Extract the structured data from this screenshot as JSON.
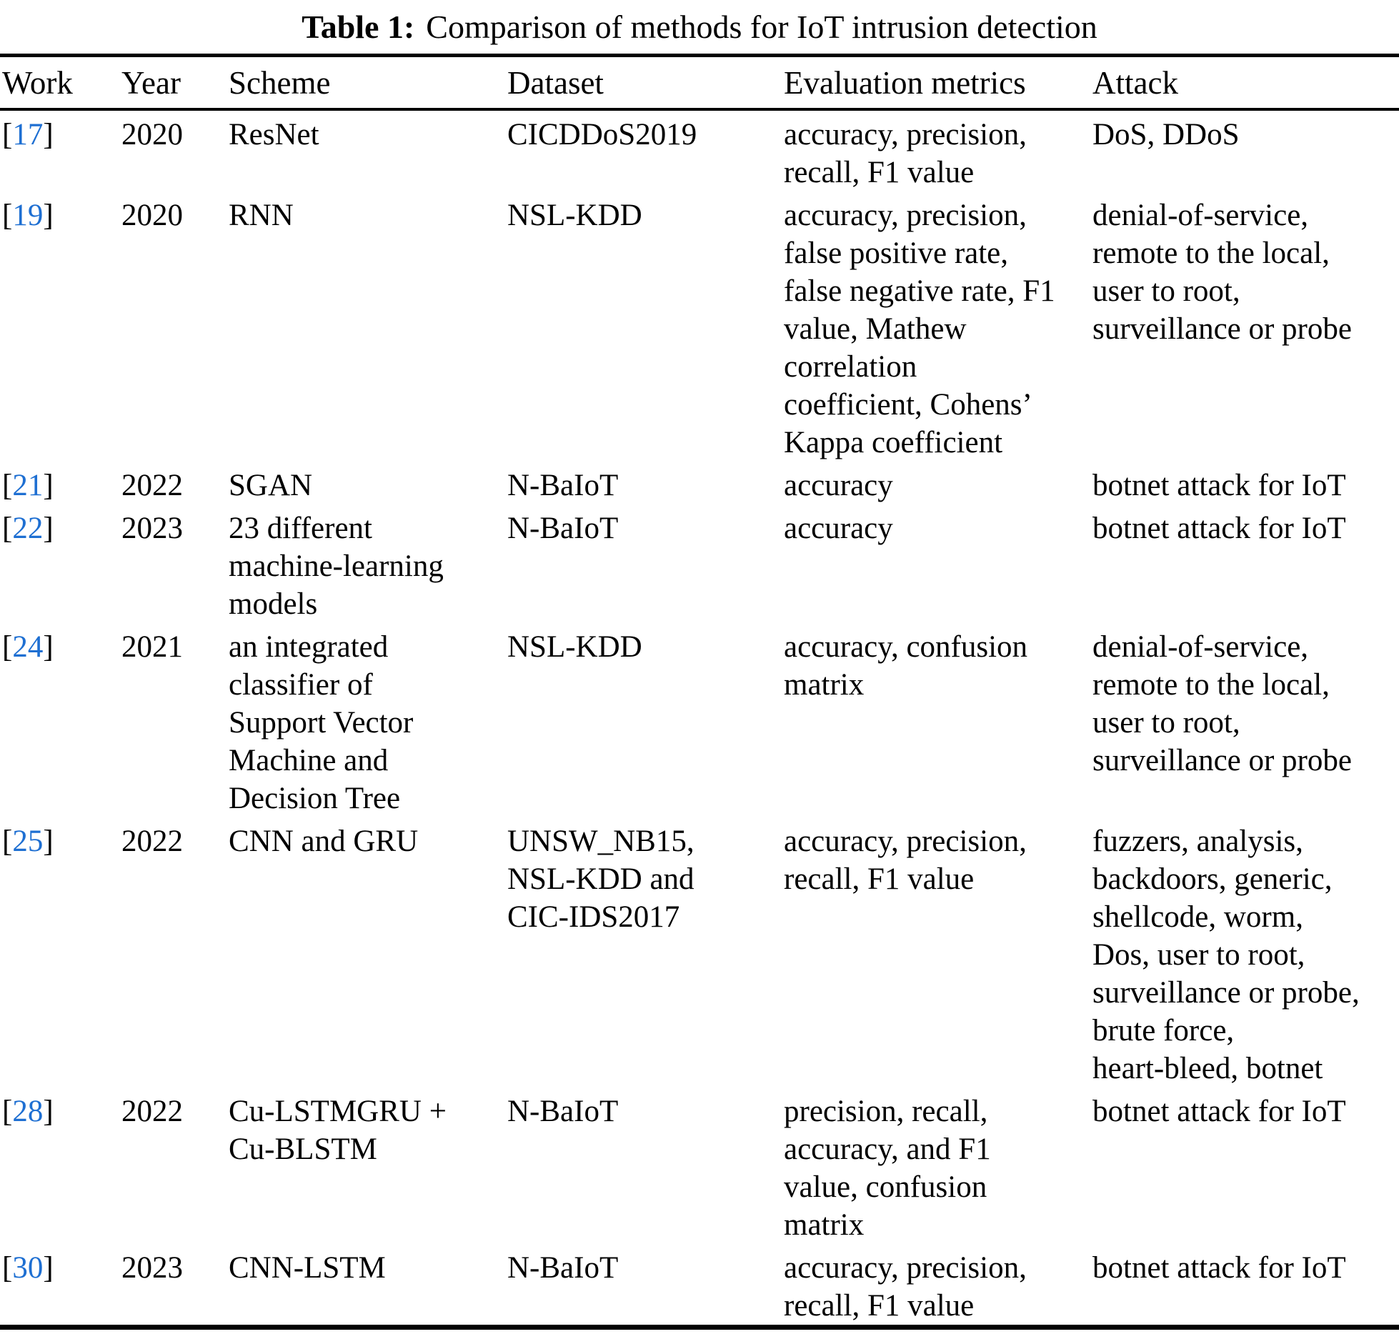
{
  "caption": {
    "label": "Table 1:",
    "text": "Comparison of methods for IoT intrusion detection"
  },
  "colors": {
    "citation_blue": "#1e6fd2",
    "text": "#000000",
    "background": "#ffffff"
  },
  "table": {
    "citation_brackets": [
      "[",
      "]"
    ],
    "headers": [
      "Work",
      "Year",
      "Scheme",
      "Dataset",
      "Evaluation metrics",
      "Attack"
    ],
    "rows": [
      {
        "work": "17",
        "year": "2020",
        "scheme": "ResNet",
        "dataset": "CICDDoS2019",
        "metrics": "accuracy, precision,\nrecall, F1 value",
        "attack": "DoS, DDoS"
      },
      {
        "work": "19",
        "year": "2020",
        "scheme": "RNN",
        "dataset": "NSL-KDD",
        "metrics": "accuracy, precision,\nfalse positive rate,\nfalse negative rate, F1\nvalue, Mathew\ncorrelation\ncoefficient, Cohens’\nKappa coefficient",
        "attack": "denial-of-service,\nremote to the local,\nuser to root,\nsurveillance or probe"
      },
      {
        "work": "21",
        "year": "2022",
        "scheme": "SGAN",
        "dataset": "N-BaIoT",
        "metrics": "accuracy",
        "attack": "botnet attack for IoT"
      },
      {
        "work": "22",
        "year": "2023",
        "scheme": "23 different\nmachine-learning\nmodels",
        "dataset": "N-BaIoT",
        "metrics": "accuracy",
        "attack": "botnet attack for IoT"
      },
      {
        "work": "24",
        "year": "2021",
        "scheme": "an integrated\nclassifier of\nSupport Vector\nMachine and\nDecision Tree",
        "dataset": "NSL-KDD",
        "metrics": "accuracy, confusion\nmatrix",
        "attack": "denial-of-service,\nremote to the local,\nuser to root,\nsurveillance or probe"
      },
      {
        "work": "25",
        "year": "2022",
        "scheme": "CNN and GRU",
        "dataset": "UNSW_NB15,\nNSL-KDD and\nCIC-IDS2017",
        "metrics": "accuracy, precision,\nrecall, F1 value",
        "attack": "fuzzers, analysis,\nbackdoors, generic,\nshellcode, worm,\nDos, user to root,\nsurveillance or probe,\nbrute force,\nheart-bleed, botnet"
      },
      {
        "work": "28",
        "year": "2022",
        "scheme": "Cu-LSTMGRU +\nCu-BLSTM",
        "dataset": "N-BaIoT",
        "metrics": "precision, recall,\naccuracy, and F1\nvalue, confusion\nmatrix",
        "attack": "botnet attack for IoT"
      },
      {
        "work": "30",
        "year": "2023",
        "scheme": "CNN-LSTM",
        "dataset": "N-BaIoT",
        "metrics": "accuracy, precision,\nrecall, F1 value",
        "attack": "botnet attack for IoT"
      }
    ]
  }
}
